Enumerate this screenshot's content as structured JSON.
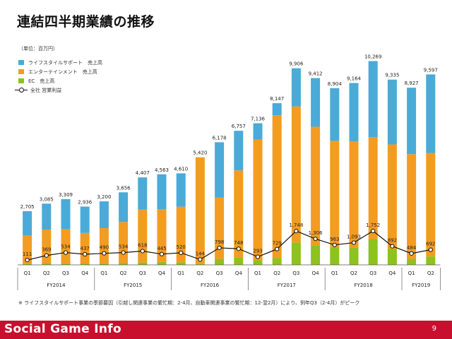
{
  "header": {
    "title": "連結四半期業績の推移"
  },
  "chart_data": {
    "type": "bar",
    "unit_label": "（単位：百万円）",
    "categories": [
      "Q1",
      "Q2",
      "Q3",
      "Q4",
      "Q1",
      "Q2",
      "Q3",
      "Q4",
      "Q1",
      "Q2",
      "Q3",
      "Q4",
      "Q1",
      "Q2",
      "Q3",
      "Q4",
      "Q1",
      "Q2",
      "Q3",
      "Q4",
      "Q1",
      "Q2"
    ],
    "fiscal_years": [
      {
        "label": "FY2014",
        "count": 4
      },
      {
        "label": "FY2015",
        "count": 4
      },
      {
        "label": "FY2016",
        "count": 4
      },
      {
        "label": "FY2017",
        "count": 4
      },
      {
        "label": "FY2018",
        "count": 4
      },
      {
        "label": "FY2019",
        "count": 2
      }
    ],
    "totals": [
      "2,705",
      "3,085",
      "3,309",
      "2,936",
      "3,200",
      "3,656",
      "4,407",
      "4,563",
      "4,610",
      "5,420",
      "6,178",
      "6,757",
      "7,136",
      "8,147",
      "9,906",
      "9,412",
      "8,904",
      "9,164",
      "10,269",
      "9,335",
      "8,927",
      "9,597"
    ],
    "series": [
      {
        "name": "EC　売上高",
        "color": "#8dc21f",
        "values": [
          60,
          70,
          80,
          70,
          80,
          90,
          120,
          150,
          130,
          40,
          300,
          360,
          230,
          340,
          1130,
          960,
          900,
          880,
          1300,
          800,
          300,
          420
        ]
      },
      {
        "name": "エンターテインメント　売上高",
        "color": "#f39c21",
        "values": [
          1420,
          1710,
          1720,
          1540,
          1770,
          2070,
          2670,
          2650,
          2800,
          5380,
          3100,
          4400,
          6080,
          7200,
          6850,
          6000,
          5350,
          5350,
          5130,
          5270,
          5280,
          5220
        ]
      },
      {
        "name": "ライフスタイルサポート　売上高",
        "color": "#4aaad8",
        "values": [
          1225,
          1305,
          1509,
          1326,
          1350,
          1496,
          1617,
          1763,
          1680,
          0,
          2778,
          1997,
          826,
          607,
          1926,
          2452,
          2654,
          2934,
          3839,
          3265,
          3347,
          3957
        ]
      }
    ],
    "line": {
      "name": "全社 営業利益",
      "values": [
        111,
        369,
        534,
        437,
        490,
        534,
        618,
        445,
        520,
        144,
        798,
        748,
        293,
        729,
        1748,
        1306,
        963,
        1093,
        1752,
        892,
        484,
        692
      ],
      "labels": [
        "111",
        "369",
        "534",
        "437",
        "490",
        "534",
        "618",
        "445",
        "520",
        "144",
        "798",
        "748",
        "293",
        "729",
        "1,748",
        "1,306",
        "963",
        "1,093",
        "1,752",
        "892",
        "484",
        "692"
      ]
    },
    "ylim": [
      0,
      10500
    ]
  },
  "footnote": "※ ライフスタイルサポート事業の季節要因（引越し関連事業の繁忙期：2-4月、自動車関連事業の繁忙期：12-翌2月）により、例年Q3（2-4月）がピーク",
  "footer": {
    "brand": "Social Game Info",
    "page": "9"
  }
}
